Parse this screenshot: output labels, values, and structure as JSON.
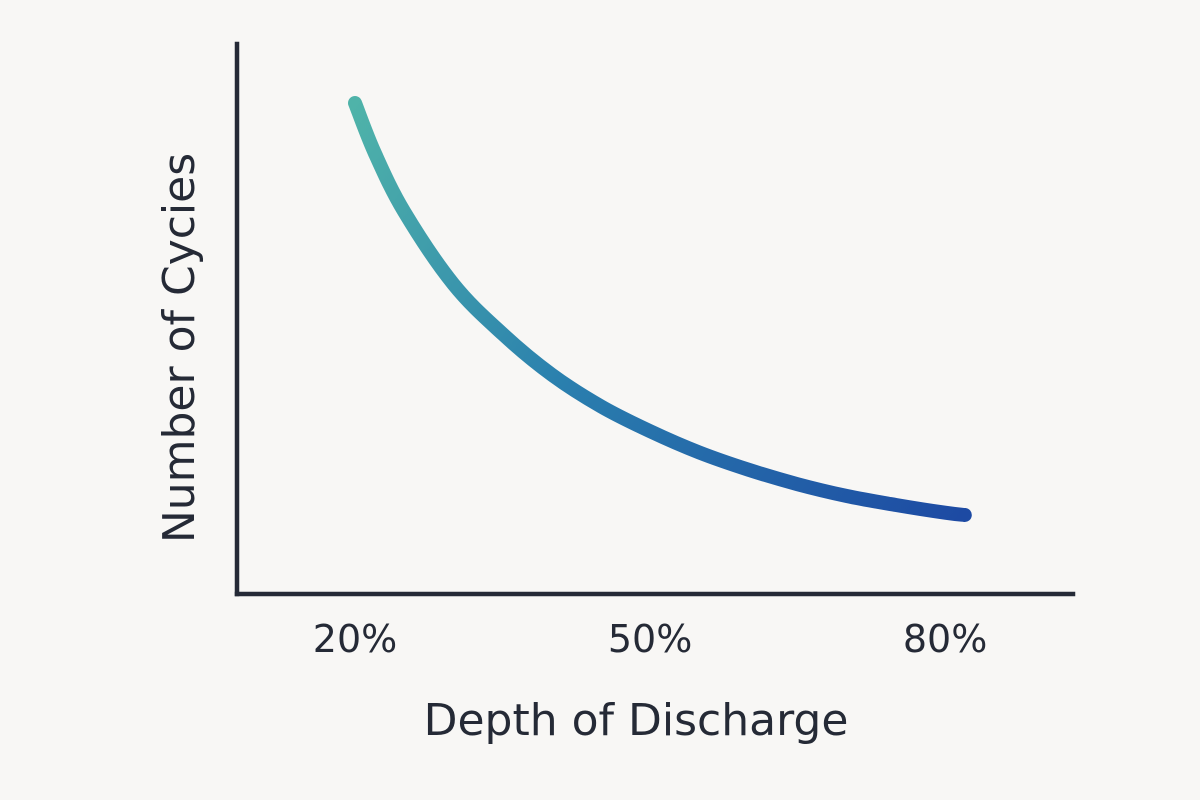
{
  "chart_data": {
    "type": "line",
    "title": "",
    "xlabel": "Depth of Discharge",
    "ylabel": "Number of Cycies",
    "x_ticks": [
      "20%",
      "50%",
      "80%"
    ],
    "x_tick_values": [
      20,
      50,
      80
    ],
    "y_ticks": [],
    "grid": false,
    "legend": "none",
    "xlim": [
      8,
      93
    ],
    "ylim": [
      0,
      1
    ],
    "series": [
      {
        "x": [
          20,
          22,
          25,
          30,
          35,
          40,
          45,
          50,
          55,
          60,
          65,
          70,
          75,
          80,
          82
        ],
        "values": [
          1.0,
          0.89,
          0.76,
          0.6,
          0.49,
          0.4,
          0.33,
          0.275,
          0.228,
          0.19,
          0.158,
          0.132,
          0.112,
          0.095,
          0.09
        ],
        "color_start": "#4fb3a9",
        "color_end": "#1d4aa3"
      }
    ]
  }
}
